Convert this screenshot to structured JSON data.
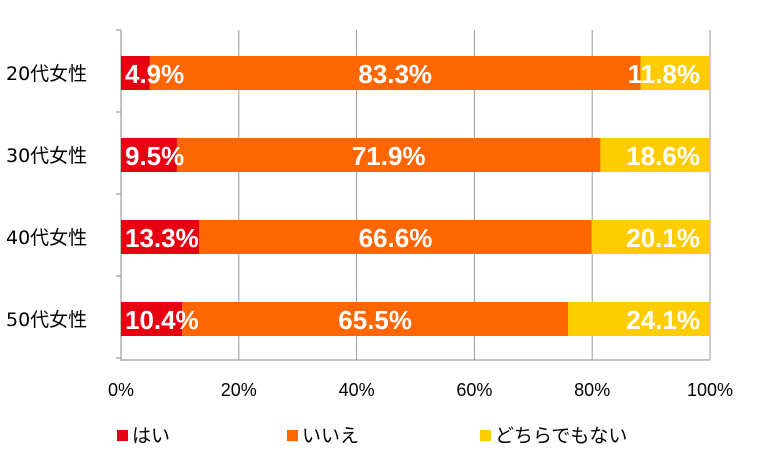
{
  "chart_data": {
    "type": "bar",
    "orientation": "horizontal",
    "stacked": true,
    "categories": [
      "20代女性",
      "30代女性",
      "40代女性",
      "50代女性"
    ],
    "series": [
      {
        "name": "はい",
        "color": "#e60012",
        "values": [
          4.9,
          9.5,
          13.3,
          10.4
        ],
        "labels": [
          "4.9%",
          "9.5%",
          "13.3%",
          "10.4%"
        ]
      },
      {
        "name": "いいえ",
        "color": "#ff6600",
        "values": [
          83.3,
          71.9,
          66.6,
          65.5
        ],
        "labels": [
          "83.3%",
          "71.9%",
          "66.6%",
          "65.5%"
        ]
      },
      {
        "name": "どちらでもない",
        "color": "#ffcc00",
        "values": [
          11.8,
          18.6,
          20.1,
          24.1
        ],
        "labels": [
          "11.8%",
          "18.6%",
          "20.1%",
          "24.1%"
        ]
      }
    ],
    "x_ticks": [
      "0%",
      "20%",
      "40%",
      "60%",
      "80%",
      "100%"
    ],
    "xlim": [
      0,
      100
    ],
    "grid": true,
    "legend_position": "bottom",
    "title": "",
    "xlabel": "",
    "ylabel": ""
  }
}
